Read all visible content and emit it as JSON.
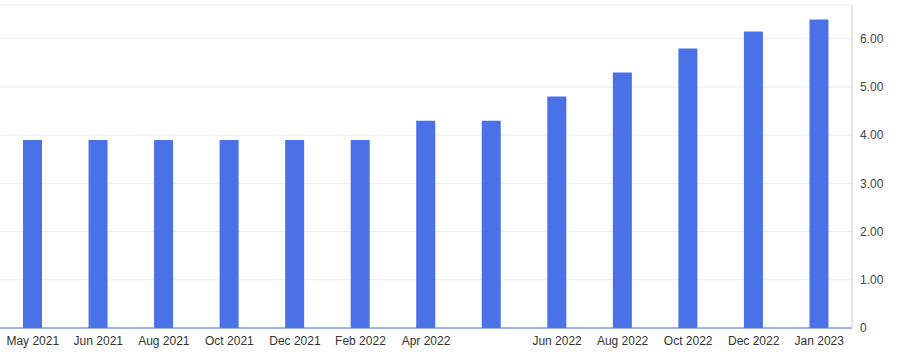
{
  "chart_data": {
    "type": "bar",
    "categories": [
      "May 2021",
      "Jun 2021",
      "Aug 2021",
      "Oct 2021",
      "Dec 2021",
      "Feb 2022",
      "Apr 2022",
      null,
      "Jun 2022",
      "Aug 2022",
      "Oct 2022",
      "Dec 2022",
      "Jan 2023"
    ],
    "values": [
      3.9,
      3.9,
      3.9,
      3.9,
      3.9,
      3.9,
      4.3,
      4.3,
      4.8,
      5.3,
      5.8,
      6.15,
      6.4
    ],
    "color": "#4a72e6",
    "ylim": [
      0,
      6.7
    ],
    "yticks": [
      0,
      {
        "value": 1,
        "label": "1.00"
      },
      {
        "value": 2,
        "label": "2.00"
      },
      {
        "value": 3,
        "label": "3.00"
      },
      {
        "value": 4,
        "label": "4.00"
      },
      {
        "value": 5,
        "label": "5.00"
      },
      {
        "value": 6,
        "label": "6.00"
      }
    ],
    "grid": true
  }
}
